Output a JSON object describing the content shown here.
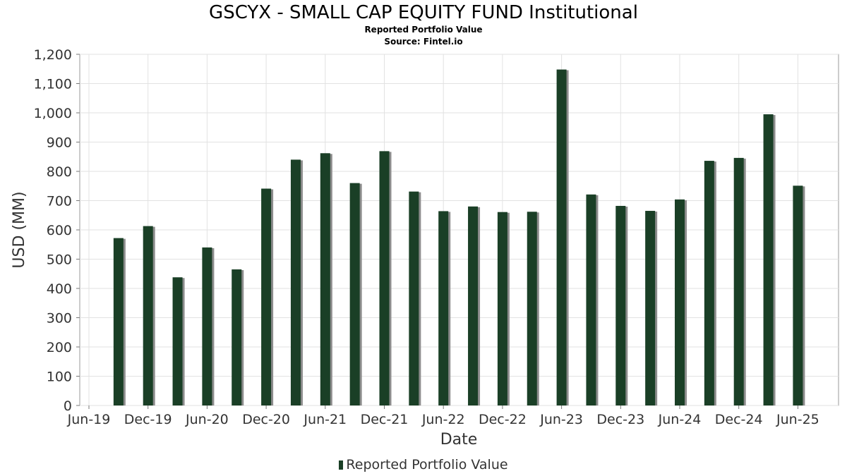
{
  "chart_data": {
    "type": "bar",
    "title": "GSCYX - SMALL CAP EQUITY FUND Institutional",
    "subtitle": "Reported Portfolio Value",
    "source": "Source: Fintel.io",
    "xlabel": "Date",
    "ylabel": "USD (MM)",
    "ylim": [
      0,
      1200
    ],
    "y_ticks": [
      "0",
      "100",
      "200",
      "300",
      "400",
      "500",
      "600",
      "700",
      "800",
      "900",
      "1,000",
      "1,100",
      "1,200"
    ],
    "x_ticks": [
      "Jun-19",
      "Dec-19",
      "Jun-20",
      "Dec-20",
      "Jun-21",
      "Dec-21",
      "Jun-22",
      "Dec-22",
      "Jun-23",
      "Dec-23",
      "Jun-24",
      "Dec-24",
      "Jun-25"
    ],
    "grid": true,
    "legend_position": "bottom",
    "series": [
      {
        "name": "Reported Portfolio Value",
        "color": "#1a3f26",
        "points": [
          {
            "date": "2019-09",
            "value": 572
          },
          {
            "date": "2019-12",
            "value": 613
          },
          {
            "date": "2020-03",
            "value": 438
          },
          {
            "date": "2020-06",
            "value": 540
          },
          {
            "date": "2020-09",
            "value": 465
          },
          {
            "date": "2020-12",
            "value": 741
          },
          {
            "date": "2021-03",
            "value": 840
          },
          {
            "date": "2021-06",
            "value": 862
          },
          {
            "date": "2021-09",
            "value": 760
          },
          {
            "date": "2021-12",
            "value": 869
          },
          {
            "date": "2022-03",
            "value": 731
          },
          {
            "date": "2022-06",
            "value": 664
          },
          {
            "date": "2022-09",
            "value": 680
          },
          {
            "date": "2022-12",
            "value": 661
          },
          {
            "date": "2023-03",
            "value": 662
          },
          {
            "date": "2023-06",
            "value": 1148
          },
          {
            "date": "2023-09",
            "value": 721
          },
          {
            "date": "2023-12",
            "value": 682
          },
          {
            "date": "2024-03",
            "value": 665
          },
          {
            "date": "2024-06",
            "value": 704
          },
          {
            "date": "2024-09",
            "value": 836
          },
          {
            "date": "2024-12",
            "value": 846
          },
          {
            "date": "2025-03",
            "value": 995
          },
          {
            "date": "2025-06",
            "value": 751
          }
        ]
      }
    ]
  }
}
